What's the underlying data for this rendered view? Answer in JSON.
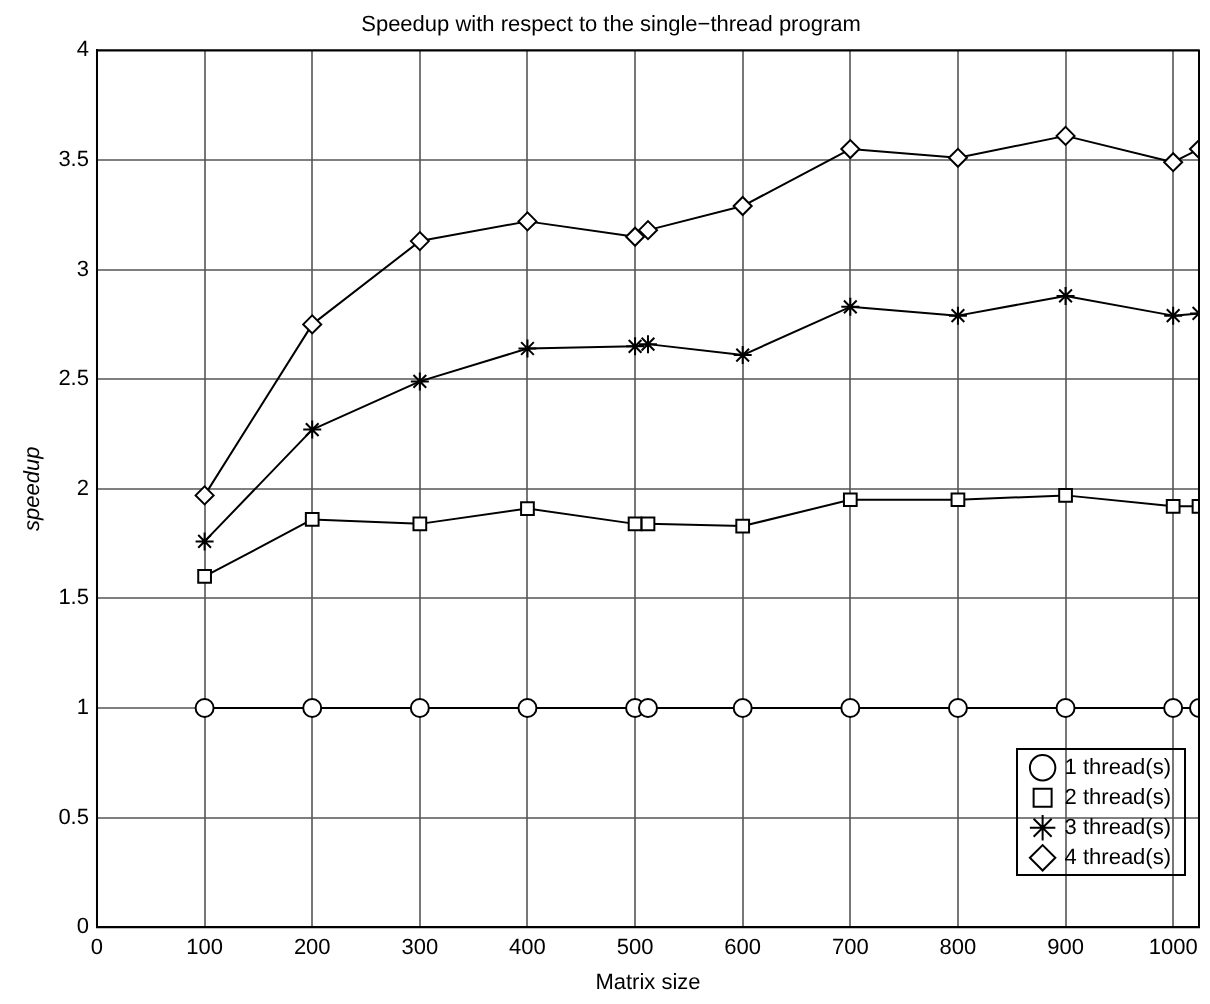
{
  "chart_data": {
    "type": "line",
    "title": "Speedup with respect to the single−thread program",
    "xlabel": "Matrix size",
    "ylabel": "speedup",
    "x": [
      100,
      200,
      300,
      400,
      500,
      512,
      600,
      700,
      800,
      900,
      1000,
      1024
    ],
    "xlim": [
      0,
      1024
    ],
    "xticks": [
      0,
      100,
      200,
      300,
      400,
      500,
      600,
      700,
      800,
      900,
      1000
    ],
    "ylim": [
      0,
      4
    ],
    "yticks": [
      0,
      0.5,
      1,
      1.5,
      2,
      2.5,
      3,
      3.5,
      4
    ],
    "grid": true,
    "legend": "bottom right",
    "line_style": "solid",
    "series": [
      {
        "name": "1 thread(s)",
        "color": "#000000",
        "marker": "circle",
        "values": [
          1,
          1,
          1,
          1,
          1,
          1,
          1,
          1,
          1,
          1,
          1,
          1
        ]
      },
      {
        "name": "2 thread(s)",
        "color": "#000000",
        "marker": "square",
        "values": [
          1.6,
          1.86,
          1.84,
          1.91,
          1.84,
          1.84,
          1.83,
          1.95,
          1.95,
          1.97,
          1.92,
          1.92
        ]
      },
      {
        "name": "3 thread(s)",
        "color": "#000000",
        "marker": "cross",
        "values": [
          1.76,
          2.27,
          2.49,
          2.64,
          2.65,
          2.66,
          2.61,
          2.83,
          2.79,
          2.88,
          2.79,
          2.8
        ]
      },
      {
        "name": "4 thread(s)",
        "color": "#000000",
        "marker": "diamond",
        "values": [
          1.97,
          2.75,
          3.13,
          3.22,
          3.15,
          3.18,
          3.29,
          3.55,
          3.51,
          3.61,
          3.49,
          3.55
        ]
      }
    ]
  }
}
